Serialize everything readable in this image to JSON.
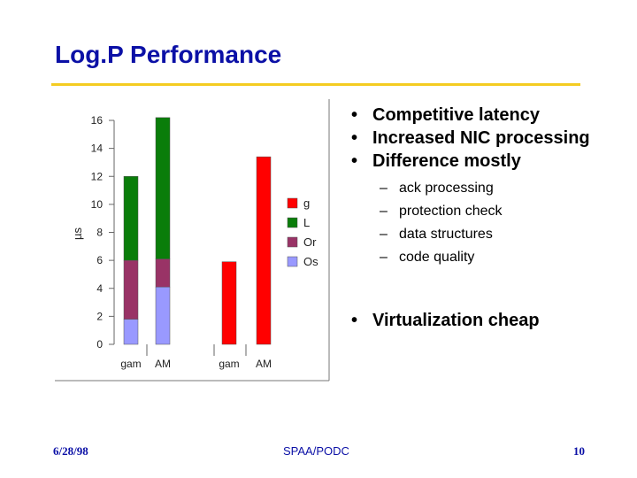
{
  "slide": {
    "title": "Log.P Performance",
    "accent_color": "#f4cc22",
    "title_color": "#0b10a6"
  },
  "bullets": {
    "b1": "Competitive latency",
    "b2": "Increased NIC processing",
    "b3": "Difference mostly",
    "subs": [
      "ack processing",
      "protection check",
      "data structures",
      "code quality"
    ],
    "b4": "Virtualization cheap",
    "bullet_char": "•",
    "dash_char": "–"
  },
  "footer": {
    "date": "6/28/98",
    "conference": "SPAA/PODC",
    "page": "10"
  },
  "chart_data": {
    "type": "bar",
    "stacked": true,
    "ylabel": "µs",
    "ylim": [
      0,
      16
    ],
    "yticks": [
      0,
      2,
      4,
      6,
      8,
      10,
      12,
      14,
      16
    ],
    "categories": [
      "gam",
      "AM",
      "gam",
      "AM"
    ],
    "series": [
      {
        "name": "Os",
        "color": "#9999ff",
        "values": [
          1.8,
          4.1,
          0,
          0
        ]
      },
      {
        "name": "Or",
        "color": "#993366",
        "values": [
          4.2,
          2.0,
          0,
          0
        ]
      },
      {
        "name": "L",
        "color": "#0a7d0a",
        "values": [
          6.0,
          10.1,
          0,
          0
        ]
      },
      {
        "name": "g",
        "color": "#ff0000",
        "values": [
          0,
          0,
          5.9,
          13.4
        ]
      }
    ],
    "legend_order": [
      "g",
      "L",
      "Or",
      "Os"
    ],
    "legend_position": "right"
  }
}
